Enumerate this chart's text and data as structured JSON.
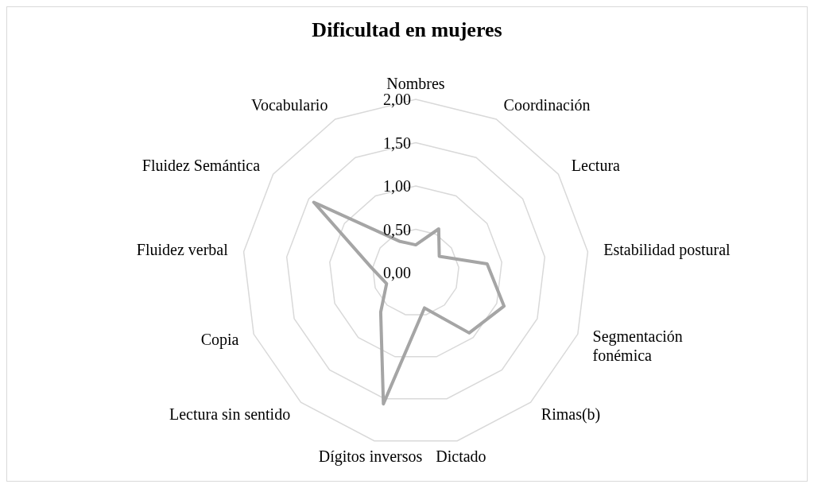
{
  "chart_data": {
    "type": "radar",
    "title": "Dificultad en mujeres",
    "categories": [
      "Nombres",
      "Coordinación",
      "Lectura",
      "Estabilidad postural",
      "Segmentación fonémica",
      "Rimas(b)",
      "Dictado",
      "Dígitos inversos",
      "Lectura sin sentido",
      "Copia",
      "Fluidez verbal",
      "Fluidez Semántica",
      "Vocabulario"
    ],
    "series": [
      {
        "color": "#a5a5a5",
        "values": [
          0.32,
          0.57,
          0.33,
          0.83,
          1.09,
          0.93,
          0.42,
          1.56,
          0.61,
          0.36,
          0.52,
          1.43,
          0.41
        ]
      }
    ],
    "ylim": [
      0,
      2
    ],
    "yticks": [
      {
        "value": 0,
        "label": "0,00"
      },
      {
        "value": 0.5,
        "label": "0,50"
      },
      {
        "value": 1,
        "label": "1,00"
      },
      {
        "value": 1.5,
        "label": "1,50"
      },
      {
        "value": 2,
        "label": "2,00"
      }
    ],
    "grid": true,
    "legend": false,
    "marker": "none"
  }
}
